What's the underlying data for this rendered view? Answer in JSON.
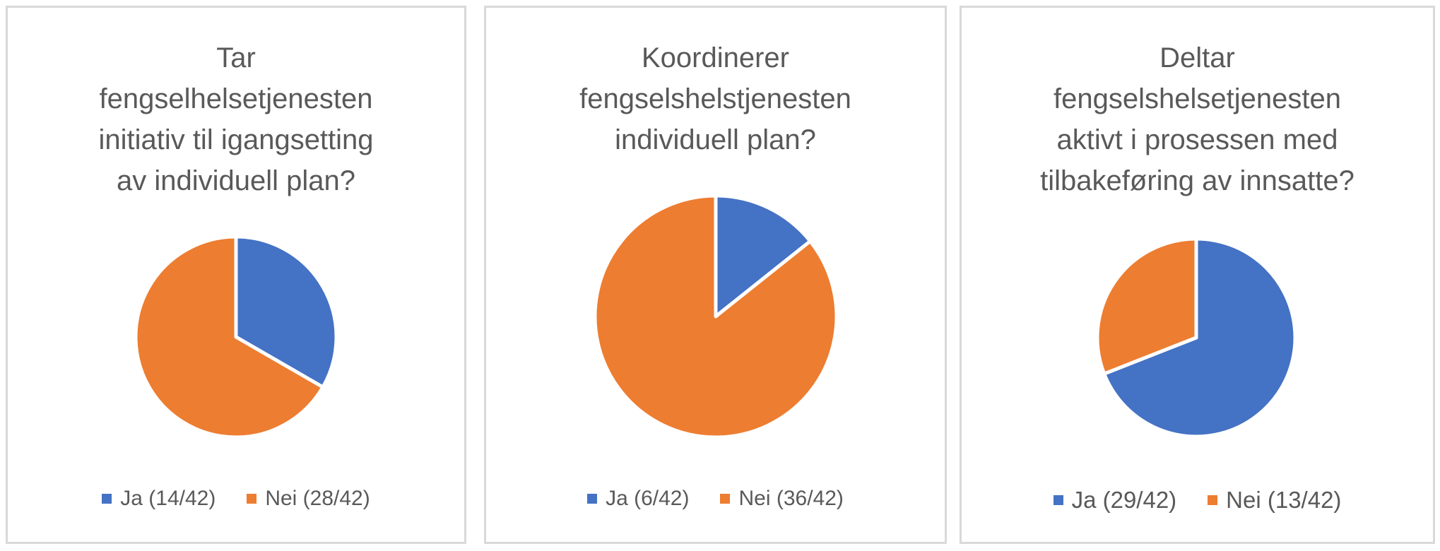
{
  "colors": {
    "ja": "#4472c4",
    "nei": "#ed7d31",
    "border": "#d9d9d9",
    "text": "#595959"
  },
  "charts": [
    {
      "title_lines": [
        "Tar",
        "fengselhelsetjenesten",
        "initiativ til igangsetting",
        "av individuell plan?"
      ],
      "legend": [
        "Ja (14/42)",
        "Nei (28/42)"
      ]
    },
    {
      "title_lines": [
        "Koordinerer",
        "fengselshelstjenesten",
        "individuell plan?"
      ],
      "legend": [
        "Ja (6/42)",
        "Nei (36/42)"
      ]
    },
    {
      "title_lines": [
        "Deltar",
        "fengselshelsetjenesten",
        "aktivt i prosessen med",
        "tilbakeføring av innsatte?"
      ],
      "legend": [
        "Ja (29/42)",
        "Nei (13/42)"
      ]
    }
  ],
  "chart_data": [
    {
      "type": "pie",
      "title": "Tar fengselhelsetjenesten initiativ til igangsetting av individuell plan?",
      "categories": [
        "Ja (14/42)",
        "Nei (28/42)"
      ],
      "values": [
        14,
        28
      ],
      "legend_position": "bottom"
    },
    {
      "type": "pie",
      "title": "Koordinerer fengselshelstjenesten individuell plan?",
      "categories": [
        "Ja (6/42)",
        "Nei (36/42)"
      ],
      "values": [
        6,
        36
      ],
      "legend_position": "bottom"
    },
    {
      "type": "pie",
      "title": "Deltar fengselshelsetjenesten aktivt i prosessen med tilbakeføring av innsatte?",
      "categories": [
        "Ja (29/42)",
        "Nei (13/42)"
      ],
      "values": [
        29,
        13
      ],
      "legend_position": "bottom"
    }
  ]
}
